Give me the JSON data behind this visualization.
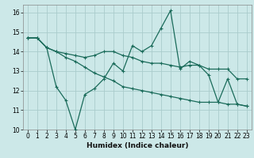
{
  "xlabel": "Humidex (Indice chaleur)",
  "bg_color": "#cce8e8",
  "grid_color": "#aacccc",
  "line_color": "#1a6b5a",
  "xlim": [
    -0.5,
    23.5
  ],
  "ylim": [
    10,
    16.4
  ],
  "yticks": [
    10,
    11,
    12,
    13,
    14,
    15,
    16
  ],
  "xticks": [
    0,
    1,
    2,
    3,
    4,
    5,
    6,
    7,
    8,
    9,
    10,
    11,
    12,
    13,
    14,
    15,
    16,
    17,
    18,
    19,
    20,
    21,
    22,
    23
  ],
  "line1_x": [
    0,
    1,
    2,
    3,
    4,
    5,
    6,
    7,
    8,
    9,
    10,
    11,
    12,
    13,
    14,
    15,
    16,
    17,
    18,
    19,
    20,
    21,
    22,
    23
  ],
  "line1_y": [
    14.7,
    14.7,
    14.2,
    12.2,
    11.5,
    10.0,
    11.8,
    12.1,
    12.6,
    13.4,
    13.0,
    14.3,
    14.0,
    14.3,
    15.2,
    16.1,
    13.1,
    13.5,
    13.3,
    12.8,
    11.4,
    12.6,
    11.3,
    11.2
  ],
  "line2_x": [
    0,
    1,
    2,
    3,
    4,
    5,
    6,
    7,
    8,
    9,
    10,
    11,
    12,
    13,
    14,
    15,
    16,
    17,
    18,
    19,
    20,
    21,
    22,
    23
  ],
  "line2_y": [
    14.7,
    14.7,
    14.2,
    14.0,
    13.9,
    13.8,
    13.7,
    13.8,
    14.0,
    14.0,
    13.8,
    13.7,
    13.5,
    13.4,
    13.4,
    13.3,
    13.2,
    13.3,
    13.3,
    13.1,
    13.1,
    13.1,
    12.6,
    12.6
  ],
  "line3_x": [
    0,
    1,
    2,
    3,
    4,
    5,
    6,
    7,
    8,
    9,
    10,
    11,
    12,
    13,
    14,
    15,
    16,
    17,
    18,
    19,
    20,
    21,
    22,
    23
  ],
  "line3_y": [
    14.7,
    14.7,
    14.2,
    14.0,
    13.7,
    13.5,
    13.2,
    12.9,
    12.7,
    12.5,
    12.2,
    12.1,
    12.0,
    11.9,
    11.8,
    11.7,
    11.6,
    11.5,
    11.4,
    11.4,
    11.4,
    11.3,
    11.3,
    11.2
  ],
  "tick_fontsize": 5.5,
  "xlabel_fontsize": 6.5,
  "lw": 0.9,
  "ms": 2.5
}
